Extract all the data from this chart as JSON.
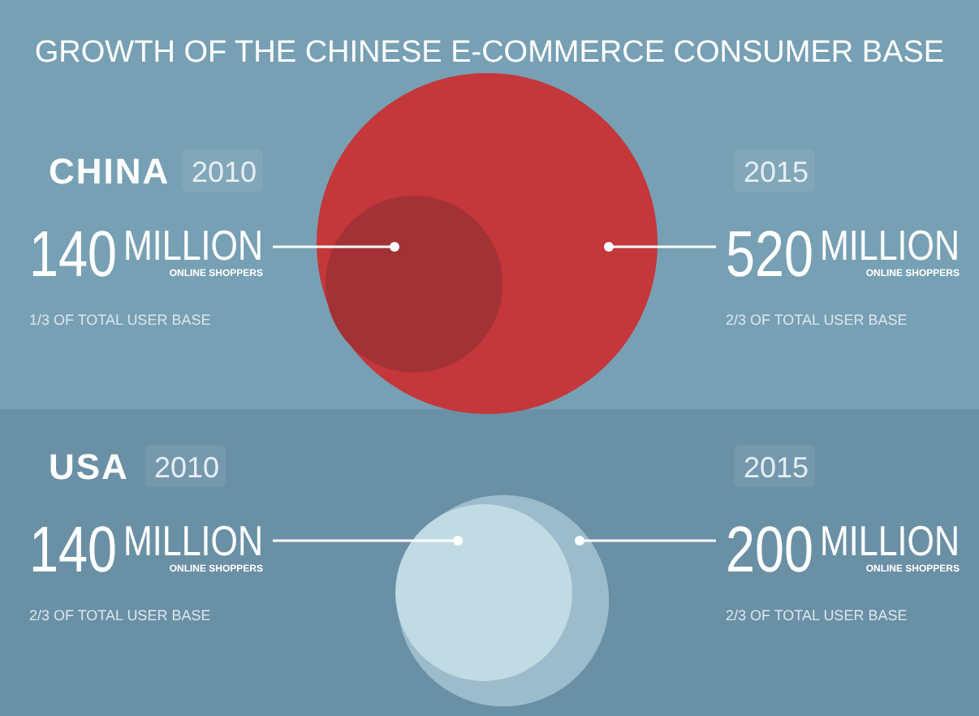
{
  "chart_data": {
    "type": "other",
    "title": "GROWTH OF THE CHINESE E-COMMERCE CONSUMER BASE",
    "categories": [
      "2010",
      "2015"
    ],
    "ylabel": "MILLION ONLINE SHOPPERS",
    "data_labels": true,
    "series": [
      {
        "name": "CHINA",
        "colors": [
          "#a33236",
          "#c4373b"
        ],
        "values": [
          140,
          520
        ]
      },
      {
        "name": "USA",
        "colors": [
          "#c0dbe4",
          "#9dbccb"
        ],
        "values": [
          140,
          200
        ]
      }
    ],
    "annotations": [
      "1/3 OF TOTAL USER BASE",
      "2/3 OF TOTAL USER BASE",
      "2/3 OF TOTAL USER BASE",
      "2/3 OF TOTAL USER BASE"
    ]
  }
}
